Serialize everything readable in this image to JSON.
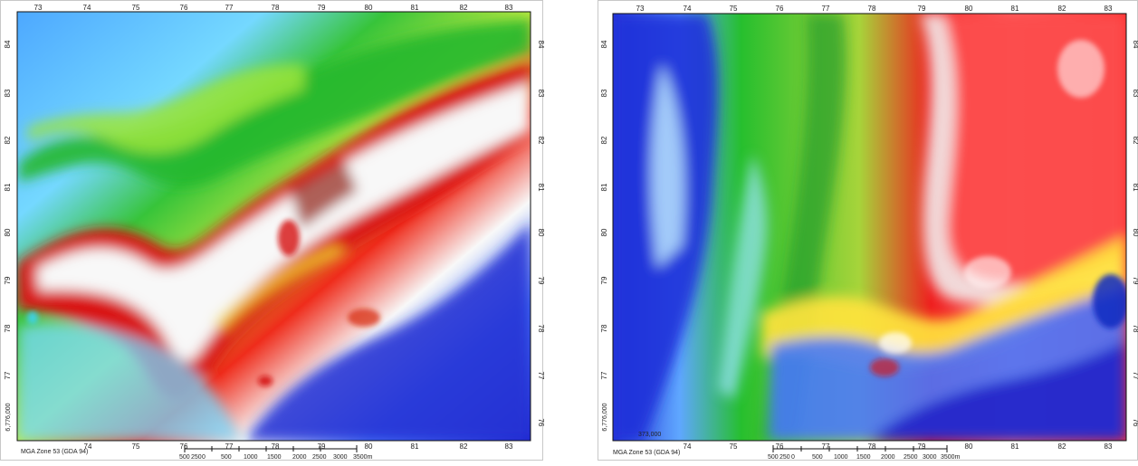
{
  "maps": [
    {
      "id": "left",
      "top_ticks": [
        "73",
        "74",
        "75",
        "76",
        "77",
        "78",
        "79",
        "80",
        "81",
        "82",
        "83"
      ],
      "bottom_ticks": [
        "74",
        "75",
        "76",
        "77",
        "78",
        "79",
        "80",
        "81",
        "82",
        "83"
      ],
      "side_ticks": [
        "84",
        "83",
        "82",
        "81",
        "80",
        "79",
        "78",
        "77",
        "76"
      ],
      "northing_label": "6,776,000",
      "easting_label": "",
      "zone_label": "MGA Zone 53 (GDA 94)",
      "scale_labels": [
        "500",
        "250",
        "0",
        "500",
        "1000",
        "1500",
        "2000",
        "2500",
        "3000",
        "3500m"
      ]
    },
    {
      "id": "right",
      "top_ticks": [
        "73",
        "74",
        "75",
        "76",
        "77",
        "78",
        "79",
        "80",
        "81",
        "82",
        "83"
      ],
      "bottom_ticks": [
        "74",
        "75",
        "76",
        "77",
        "78",
        "79",
        "80",
        "81",
        "82",
        "83"
      ],
      "side_ticks": [
        "84",
        "83",
        "82",
        "81",
        "80",
        "79",
        "78",
        "77",
        "76"
      ],
      "northing_label": "6,776,000",
      "easting_label": "373,000",
      "zone_label": "MGA Zone 53 (GDA 94)",
      "scale_labels": [
        "500",
        "250",
        "0",
        "500",
        "1000",
        "1500",
        "2000",
        "2500",
        "3000",
        "3500m"
      ]
    }
  ],
  "colors": {
    "low": "#1e2bd8",
    "mid_low": "#69c3ff",
    "mid": "#25c32a",
    "mid_high": "#f2e53a",
    "high": "#e50d0d",
    "peak": "#ffffff"
  }
}
